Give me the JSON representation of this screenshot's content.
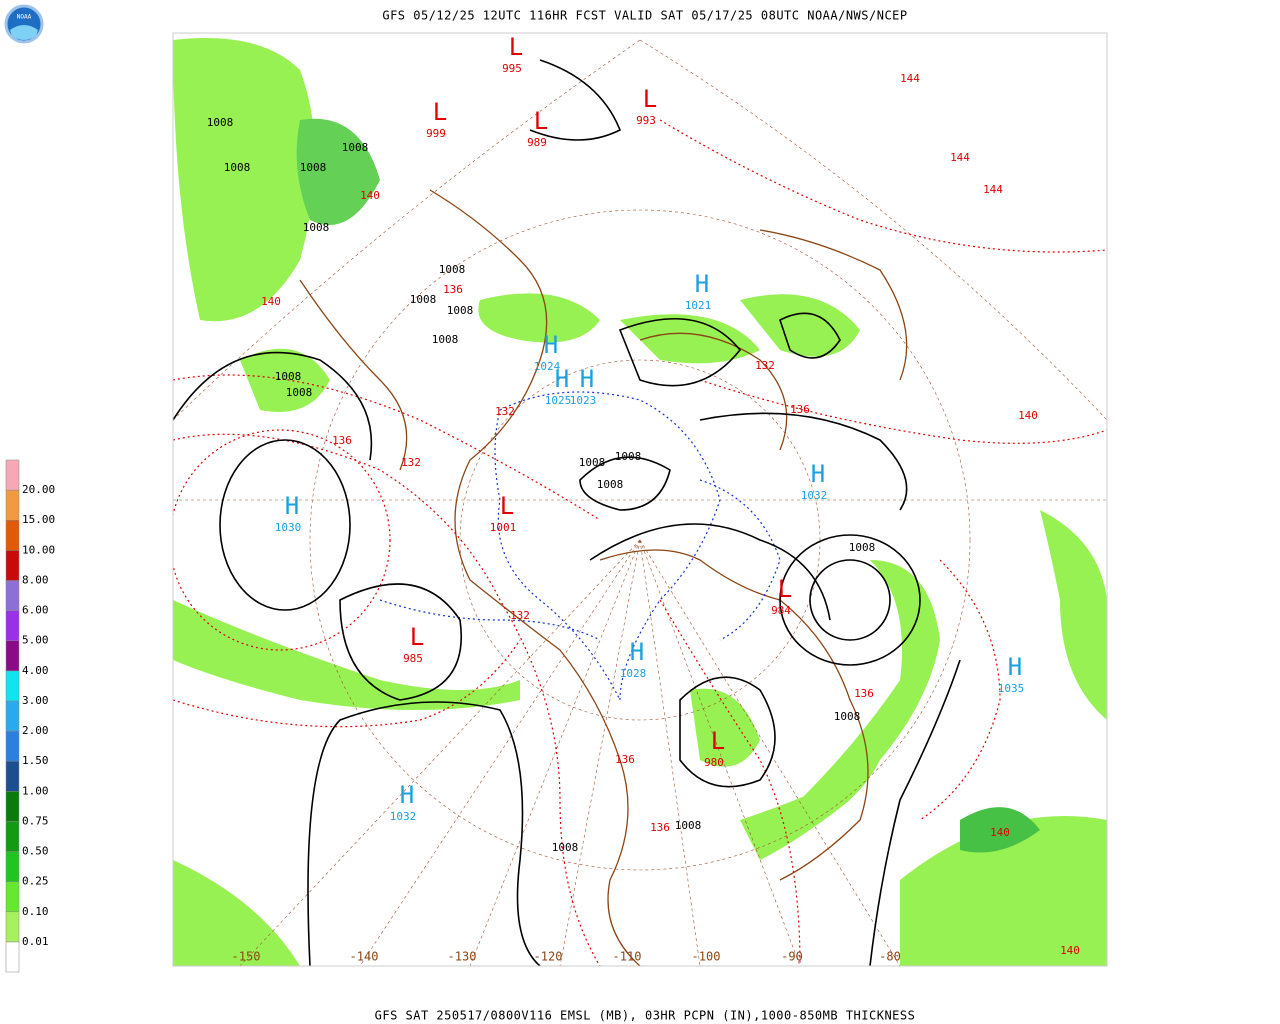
{
  "header": {
    "title": "GFS 05/12/25 12UTC 116HR FCST VALID SAT 05/17/25 08UTC NOAA/NWS/NCEP",
    "logo": "NOAA"
  },
  "legend": {
    "labels": [
      "0.01",
      "0.10",
      "0.25",
      "0.50",
      "0.75",
      "1.00",
      "1.50",
      "2.00",
      "3.00",
      "4.00",
      "5.00",
      "6.00",
      "8.00",
      "10.00",
      "15.00",
      "20.00"
    ],
    "colors": [
      "#ffffff",
      "#a6f25e",
      "#66e82e",
      "#22c422",
      "#129a12",
      "#0a7a0a",
      "#1b4f8f",
      "#2c7fe0",
      "#2aaaee",
      "#10e4f0",
      "#8a0a88",
      "#9a30e8",
      "#8c70d8",
      "#c80a0a",
      "#e05a08",
      "#f29a40",
      "#f6a8b6"
    ]
  },
  "map": {
    "centers": [
      {
        "letter": "H",
        "value": "1030"
      },
      {
        "letter": "H",
        "value": "1032"
      },
      {
        "letter": "H",
        "value": "1024"
      },
      {
        "letter": "H",
        "value": "1032"
      },
      {
        "letter": "H",
        "value": "1035"
      },
      {
        "letter": "H",
        "value": "1021"
      },
      {
        "letter": "H",
        "value": "1028"
      },
      {
        "letter": "H",
        "value": "1025"
      },
      {
        "letter": "H",
        "value": "1023"
      },
      {
        "letter": "L",
        "value": "999"
      },
      {
        "letter": "L",
        "value": "989"
      },
      {
        "letter": "L",
        "value": "1001"
      },
      {
        "letter": "L",
        "value": "985"
      },
      {
        "letter": "L",
        "value": "980"
      },
      {
        "letter": "L",
        "value": "993"
      },
      {
        "letter": "L",
        "value": "995"
      },
      {
        "letter": "L",
        "value": "984"
      }
    ],
    "isobar_labels": [
      "1008",
      "1008",
      "1008",
      "1008",
      "1008",
      "1008",
      "1008",
      "1008",
      "1008",
      "1008",
      "1008",
      "1008",
      "1008",
      "1008",
      "1008",
      "1008",
      "1008",
      "1008"
    ],
    "thickness_labels": [
      "140",
      "136",
      "132",
      "136",
      "140",
      "132",
      "136",
      "140",
      "144",
      "144",
      "132",
      "136",
      "136",
      "140",
      "140",
      "136",
      "132",
      "144"
    ],
    "longitudes": [
      "-150",
      "-140",
      "-130",
      "-120",
      "-110",
      "-100",
      "-90",
      "-80"
    ]
  },
  "footer": {
    "title": "GFS SAT 250517/0800V116 EMSL (MB), 03HR PCPN (IN),1000-850MB THICKNESS"
  }
}
